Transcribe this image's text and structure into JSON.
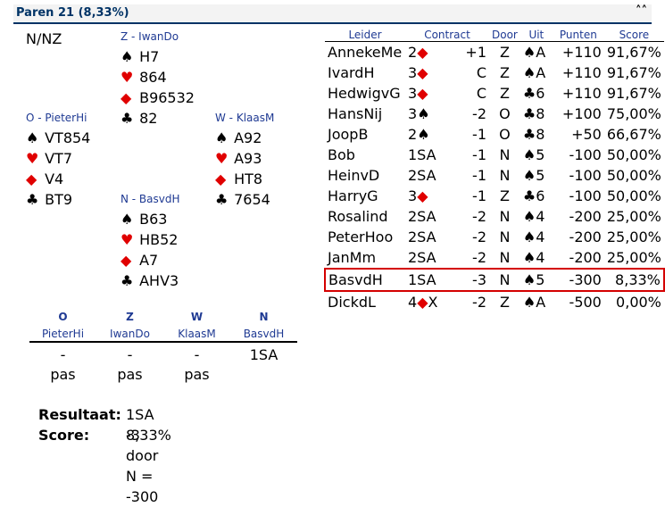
{
  "header": {
    "title": "Paren 21  (8,33%)",
    "collapse_icon": "double-chevron-up-icon"
  },
  "board": {
    "dealer_vul": "N/NZ"
  },
  "hands": {
    "north_top": {
      "label": "Z - IwanDo",
      "spades": "H7",
      "hearts": "864",
      "diamonds": "B96532",
      "clubs": "82"
    },
    "west": {
      "label": "O - PieterHi",
      "spades": "VT854",
      "hearts": "VT7",
      "diamonds": "V4",
      "clubs": "BT9"
    },
    "east": {
      "label": "W - KlaasM",
      "spades": "A92",
      "hearts": "A93",
      "diamonds": "HT8",
      "clubs": "7654"
    },
    "south_bottom": {
      "label": "N - BasvdH",
      "spades": "B63",
      "hearts": "HB52",
      "diamonds": "A7",
      "clubs": "AHV3"
    }
  },
  "symbols": {
    "spade": "♠",
    "heart": "♥",
    "diamond": "◆",
    "club": "♣"
  },
  "bidding": {
    "seats": [
      "O",
      "Z",
      "W",
      "N"
    ],
    "names": [
      "PieterHi",
      "IwanDo",
      "KlaasM",
      "BasvdH"
    ],
    "row1": [
      "-",
      "-",
      "-",
      "1SA"
    ],
    "row2": [
      "pas",
      "pas",
      "pas",
      ""
    ]
  },
  "result": {
    "result_label": "Resultaat:",
    "result_value": "1SA -3 door N = -300",
    "score_label": "Score:",
    "score_value": "8,33%"
  },
  "table": {
    "headers": [
      "Leider",
      "Contract",
      "Door",
      "Uit",
      "Punten",
      "Score"
    ],
    "rows": [
      {
        "leider": "AnnekeMe",
        "level": "2",
        "suit": "◆",
        "suit_red": true,
        "extra": "",
        "result": "+1",
        "door": "Z",
        "uit_suit": "♠",
        "uit_red": false,
        "uit_card": "A",
        "punten": "+110",
        "score": "91,67%"
      },
      {
        "leider": "IvardH",
        "level": "3",
        "suit": "◆",
        "suit_red": true,
        "extra": "",
        "result": "C",
        "door": "Z",
        "uit_suit": "♠",
        "uit_red": false,
        "uit_card": "A",
        "punten": "+110",
        "score": "91,67%"
      },
      {
        "leider": "HedwigvG",
        "level": "3",
        "suit": "◆",
        "suit_red": true,
        "extra": "",
        "result": "C",
        "door": "Z",
        "uit_suit": "♣",
        "uit_red": false,
        "uit_card": "6",
        "punten": "+110",
        "score": "91,67%"
      },
      {
        "leider": "HansNij",
        "level": "3",
        "suit": "♠",
        "suit_red": false,
        "extra": "",
        "result": "-2",
        "door": "O",
        "uit_suit": "♣",
        "uit_red": false,
        "uit_card": "8",
        "punten": "+100",
        "score": "75,00%"
      },
      {
        "leider": "JoopB",
        "level": "2",
        "suit": "♠",
        "suit_red": false,
        "extra": "",
        "result": "-1",
        "door": "O",
        "uit_suit": "♣",
        "uit_red": false,
        "uit_card": "8",
        "punten": "+50",
        "score": "66,67%"
      },
      {
        "leider": "Bob",
        "level": "1SA",
        "suit": "",
        "suit_red": false,
        "extra": "",
        "result": "-1",
        "door": "N",
        "uit_suit": "♠",
        "uit_red": false,
        "uit_card": "5",
        "punten": "-100",
        "score": "50,00%"
      },
      {
        "leider": "HeinvD",
        "level": "2SA",
        "suit": "",
        "suit_red": false,
        "extra": "",
        "result": "-1",
        "door": "N",
        "uit_suit": "♠",
        "uit_red": false,
        "uit_card": "5",
        "punten": "-100",
        "score": "50,00%"
      },
      {
        "leider": "HarryG",
        "level": "3",
        "suit": "◆",
        "suit_red": true,
        "extra": "",
        "result": "-1",
        "door": "Z",
        "uit_suit": "♣",
        "uit_red": false,
        "uit_card": "6",
        "punten": "-100",
        "score": "50,00%"
      },
      {
        "leider": "Rosalind",
        "level": "2SA",
        "suit": "",
        "suit_red": false,
        "extra": "",
        "result": "-2",
        "door": "N",
        "uit_suit": "♠",
        "uit_red": false,
        "uit_card": "4",
        "punten": "-200",
        "score": "25,00%"
      },
      {
        "leider": "PeterHoo",
        "level": "2SA",
        "suit": "",
        "suit_red": false,
        "extra": "",
        "result": "-2",
        "door": "N",
        "uit_suit": "♠",
        "uit_red": false,
        "uit_card": "4",
        "punten": "-200",
        "score": "25,00%"
      },
      {
        "leider": "JanMm",
        "level": "2SA",
        "suit": "",
        "suit_red": false,
        "extra": "",
        "result": "-2",
        "door": "N",
        "uit_suit": "♠",
        "uit_red": false,
        "uit_card": "4",
        "punten": "-200",
        "score": "25,00%"
      },
      {
        "leider": "BasvdH",
        "level": "1SA",
        "suit": "",
        "suit_red": false,
        "extra": "",
        "result": "-3",
        "door": "N",
        "uit_suit": "♠",
        "uit_red": false,
        "uit_card": "5",
        "punten": "-300",
        "score": "8,33%",
        "highlight": true
      },
      {
        "leider": "DickdL",
        "level": "4",
        "suit": "◆",
        "suit_red": true,
        "extra": "X",
        "result": "-2",
        "door": "Z",
        "uit_suit": "♠",
        "uit_red": false,
        "uit_card": "A",
        "punten": "-500",
        "score": "0,00%"
      }
    ]
  }
}
